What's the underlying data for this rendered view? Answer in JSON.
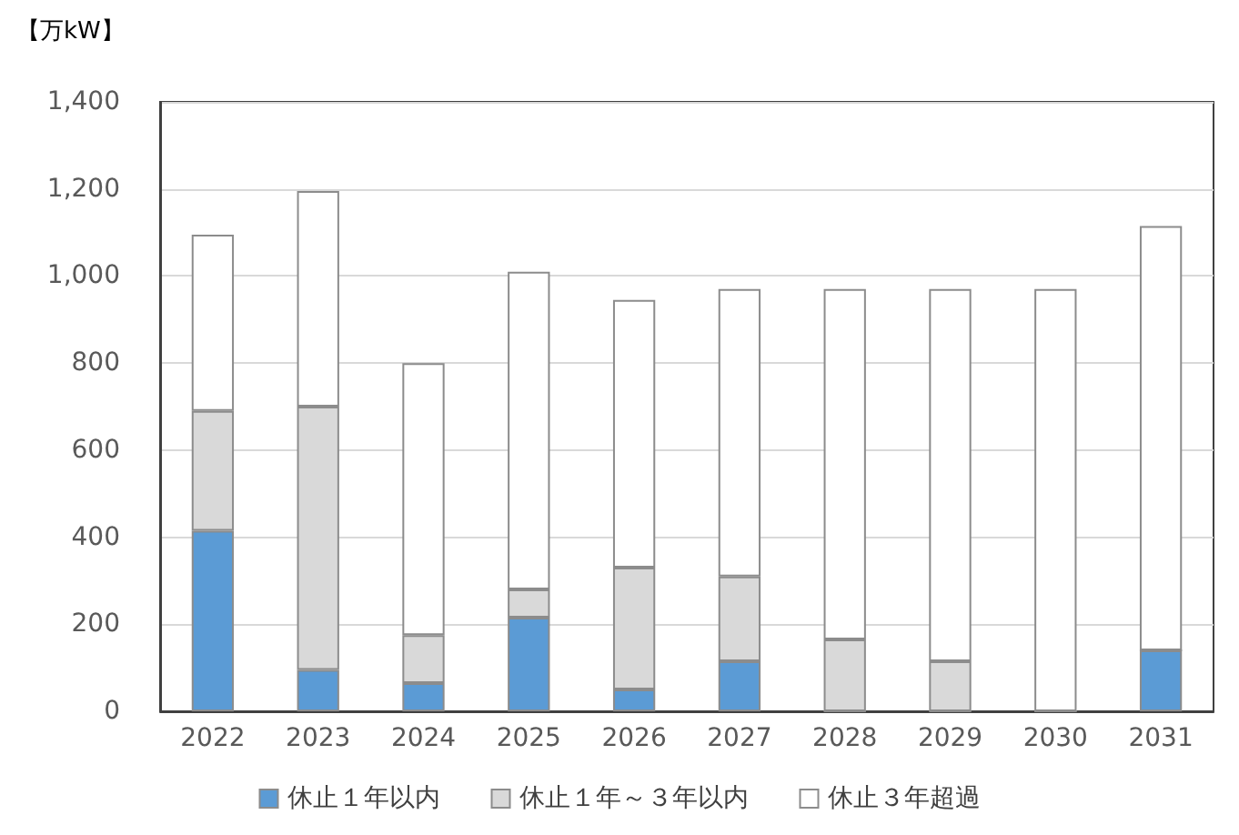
{
  "chart_data": {
    "type": "bar",
    "stacked": true,
    "ylabel": "【万kW】",
    "categories": [
      "2022",
      "2023",
      "2024",
      "2025",
      "2026",
      "2027",
      "2028",
      "2029",
      "2030",
      "2031"
    ],
    "series": [
      {
        "name": "休止１年以内",
        "color": "#5b9bd5",
        "values": [
          415,
          95,
          65,
          215,
          50,
          115,
          0,
          0,
          0,
          140
        ]
      },
      {
        "name": "休止１年～３年以内",
        "color": "#d9d9d9",
        "values": [
          275,
          605,
          110,
          65,
          280,
          195,
          165,
          115,
          0,
          0
        ]
      },
      {
        "name": "休止３年超過",
        "color": "#ffffff",
        "values": [
          405,
          495,
          625,
          730,
          615,
          660,
          805,
          855,
          970,
          975
        ]
      }
    ],
    "ylim": [
      0,
      1400
    ],
    "yticks": [
      0,
      200,
      400,
      600,
      800,
      {
        "value": 1000,
        "label": "1,000"
      },
      {
        "value": 1200,
        "label": "1,200"
      },
      {
        "value": 1400,
        "label": "1,400"
      }
    ],
    "grid": "y",
    "legend": "bottom"
  }
}
